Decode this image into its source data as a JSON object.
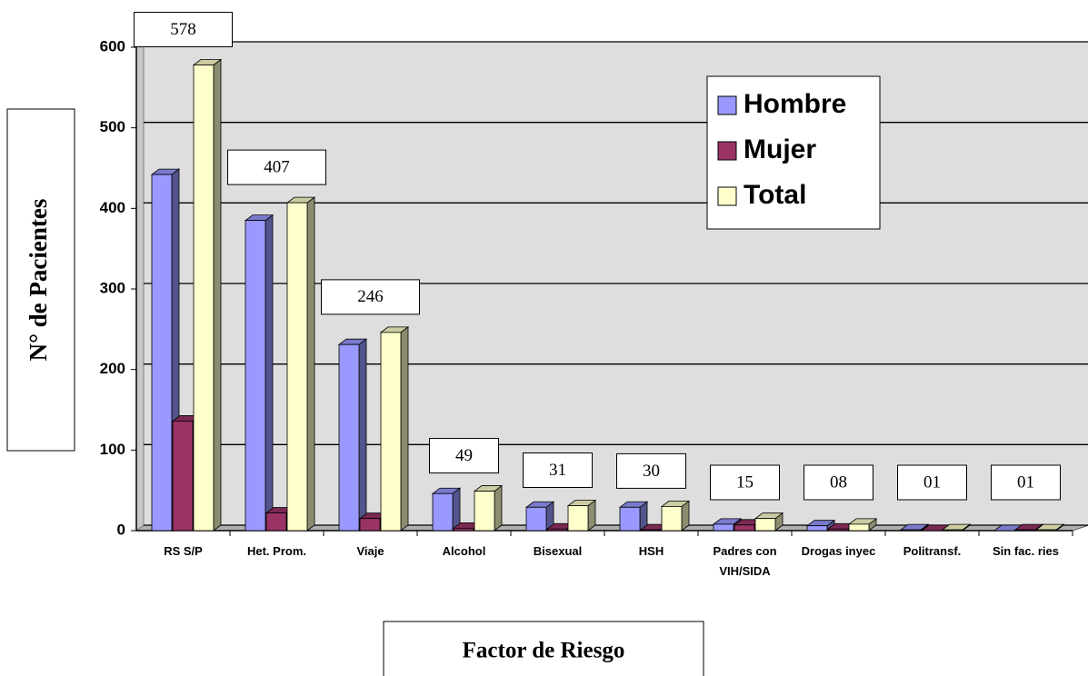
{
  "chart_data": {
    "type": "bar3d",
    "x_label": "Factor  de Riesgo",
    "y_label": "N° de Pacientes",
    "categories": [
      "RS S/P",
      "Het. Prom.",
      "Viaje",
      "Alcohol",
      "Bisexual",
      "HSH",
      "Padres con VIH/SIDA",
      "Drogas inyec",
      "Politransf.",
      "Sin fac. ries"
    ],
    "series": [
      {
        "name": "Hombre",
        "color": "#9999ff",
        "values": [
          442,
          385,
          231,
          46,
          29,
          29,
          8,
          6,
          1,
          0
        ]
      },
      {
        "name": "Mujer",
        "color": "#993366",
        "values": [
          136,
          22,
          15,
          3,
          2,
          1,
          7,
          2,
          0,
          1
        ]
      },
      {
        "name": "Total",
        "color": "#ffffcc",
        "values": [
          578,
          407,
          246,
          49,
          31,
          30,
          15,
          8,
          1,
          1
        ],
        "value_labels": [
          "578",
          "407",
          "246",
          "49",
          "31",
          "30",
          "15",
          "08",
          "01",
          "01"
        ]
      }
    ],
    "ylim": [
      0,
      600
    ],
    "yticks": [
      0,
      100,
      200,
      300,
      400,
      500,
      600
    ],
    "grid": true
  }
}
